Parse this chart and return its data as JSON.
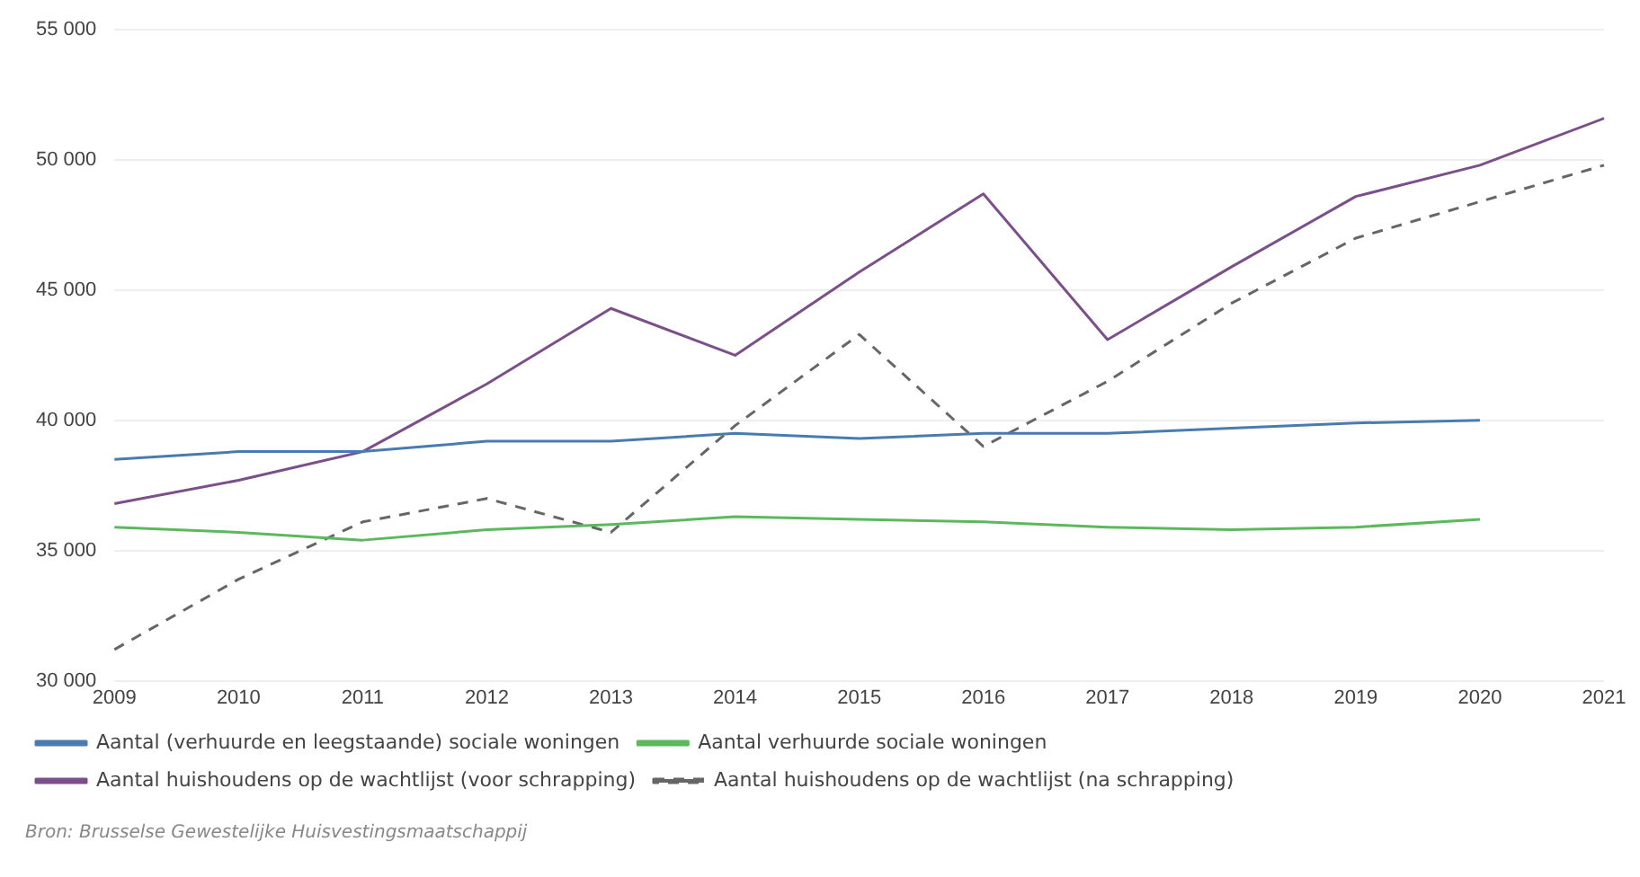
{
  "chart_data": {
    "type": "line",
    "categories": [
      "2009",
      "2010",
      "2011",
      "2012",
      "2013",
      "2014",
      "2015",
      "2016",
      "2017",
      "2018",
      "2019",
      "2020",
      "2021"
    ],
    "series": [
      {
        "name": "Aantal (verhuurde en leegstaande) sociale woningen",
        "color": "#4a7bb0",
        "values": [
          38500,
          38800,
          38800,
          39200,
          39200,
          39500,
          39300,
          39500,
          39500,
          39700,
          39900,
          40000,
          null
        ]
      },
      {
        "name": "Aantal verhuurde sociale woningen",
        "color": "#5cb85c",
        "values": [
          35900,
          35700,
          35400,
          35800,
          36000,
          36300,
          36200,
          36100,
          35900,
          35800,
          35900,
          36200,
          null
        ]
      },
      {
        "name": "Aantal huishoudens op de wachtlijst (voor schrapping)",
        "color": "#7b4f8a",
        "values": [
          36800,
          37700,
          38800,
          41400,
          44300,
          42500,
          45700,
          48700,
          43100,
          45900,
          48600,
          49800,
          51600
        ]
      },
      {
        "name": "Aantal huishoudens op de wachtlijst (na schrapping)",
        "color": "#666666",
        "line_style": "dashed",
        "values": [
          31200,
          33900,
          36100,
          37000,
          35700,
          39800,
          43300,
          39000,
          41500,
          44500,
          47000,
          48400,
          49800
        ]
      }
    ],
    "ylim": [
      30000,
      55000
    ],
    "yticks": [
      {
        "value": 30000,
        "label": "30 000"
      },
      {
        "value": 35000,
        "label": "35 000"
      },
      {
        "value": 40000,
        "label": "40 000"
      },
      {
        "value": 45000,
        "label": "45 000"
      },
      {
        "value": 50000,
        "label": "50 000"
      },
      {
        "value": 55000,
        "label": "55 000"
      }
    ],
    "grid": "y",
    "legend": "bottom",
    "marker": "none",
    "annotations": [
      "Bron: Brusselse Gewestelijke Huisvestingsmaatschappij"
    ]
  }
}
